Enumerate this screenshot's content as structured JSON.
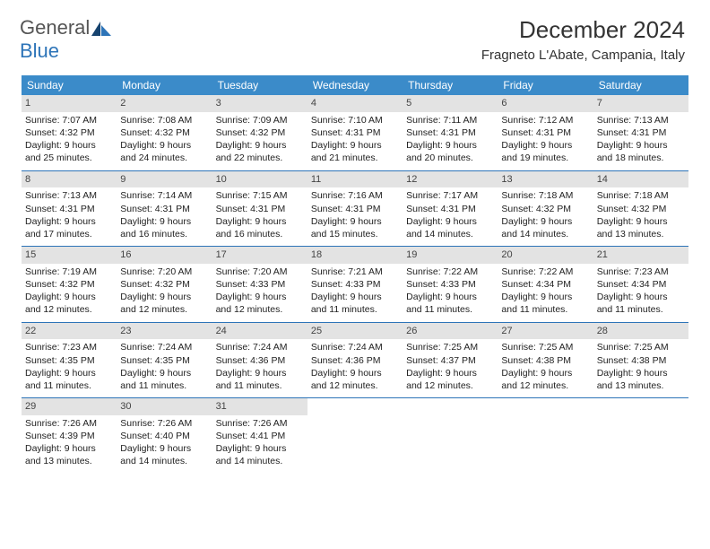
{
  "logo": {
    "general": "General",
    "blue": "Blue"
  },
  "title": "December 2024",
  "location": "Fragneto L'Abate, Campania, Italy",
  "colors": {
    "header_bg": "#3b8bc9",
    "header_text": "#ffffff",
    "daynum_bg": "#e3e3e3",
    "week_border": "#2d74b8"
  },
  "day_headers": [
    "Sunday",
    "Monday",
    "Tuesday",
    "Wednesday",
    "Thursday",
    "Friday",
    "Saturday"
  ],
  "days": [
    {
      "n": "1",
      "sr": "7:07 AM",
      "ss": "4:32 PM",
      "dl": "9 hours and 25 minutes."
    },
    {
      "n": "2",
      "sr": "7:08 AM",
      "ss": "4:32 PM",
      "dl": "9 hours and 24 minutes."
    },
    {
      "n": "3",
      "sr": "7:09 AM",
      "ss": "4:32 PM",
      "dl": "9 hours and 22 minutes."
    },
    {
      "n": "4",
      "sr": "7:10 AM",
      "ss": "4:31 PM",
      "dl": "9 hours and 21 minutes."
    },
    {
      "n": "5",
      "sr": "7:11 AM",
      "ss": "4:31 PM",
      "dl": "9 hours and 20 minutes."
    },
    {
      "n": "6",
      "sr": "7:12 AM",
      "ss": "4:31 PM",
      "dl": "9 hours and 19 minutes."
    },
    {
      "n": "7",
      "sr": "7:13 AM",
      "ss": "4:31 PM",
      "dl": "9 hours and 18 minutes."
    },
    {
      "n": "8",
      "sr": "7:13 AM",
      "ss": "4:31 PM",
      "dl": "9 hours and 17 minutes."
    },
    {
      "n": "9",
      "sr": "7:14 AM",
      "ss": "4:31 PM",
      "dl": "9 hours and 16 minutes."
    },
    {
      "n": "10",
      "sr": "7:15 AM",
      "ss": "4:31 PM",
      "dl": "9 hours and 16 minutes."
    },
    {
      "n": "11",
      "sr": "7:16 AM",
      "ss": "4:31 PM",
      "dl": "9 hours and 15 minutes."
    },
    {
      "n": "12",
      "sr": "7:17 AM",
      "ss": "4:31 PM",
      "dl": "9 hours and 14 minutes."
    },
    {
      "n": "13",
      "sr": "7:18 AM",
      "ss": "4:32 PM",
      "dl": "9 hours and 14 minutes."
    },
    {
      "n": "14",
      "sr": "7:18 AM",
      "ss": "4:32 PM",
      "dl": "9 hours and 13 minutes."
    },
    {
      "n": "15",
      "sr": "7:19 AM",
      "ss": "4:32 PM",
      "dl": "9 hours and 12 minutes."
    },
    {
      "n": "16",
      "sr": "7:20 AM",
      "ss": "4:32 PM",
      "dl": "9 hours and 12 minutes."
    },
    {
      "n": "17",
      "sr": "7:20 AM",
      "ss": "4:33 PM",
      "dl": "9 hours and 12 minutes."
    },
    {
      "n": "18",
      "sr": "7:21 AM",
      "ss": "4:33 PM",
      "dl": "9 hours and 11 minutes."
    },
    {
      "n": "19",
      "sr": "7:22 AM",
      "ss": "4:33 PM",
      "dl": "9 hours and 11 minutes."
    },
    {
      "n": "20",
      "sr": "7:22 AM",
      "ss": "4:34 PM",
      "dl": "9 hours and 11 minutes."
    },
    {
      "n": "21",
      "sr": "7:23 AM",
      "ss": "4:34 PM",
      "dl": "9 hours and 11 minutes."
    },
    {
      "n": "22",
      "sr": "7:23 AM",
      "ss": "4:35 PM",
      "dl": "9 hours and 11 minutes."
    },
    {
      "n": "23",
      "sr": "7:24 AM",
      "ss": "4:35 PM",
      "dl": "9 hours and 11 minutes."
    },
    {
      "n": "24",
      "sr": "7:24 AM",
      "ss": "4:36 PM",
      "dl": "9 hours and 11 minutes."
    },
    {
      "n": "25",
      "sr": "7:24 AM",
      "ss": "4:36 PM",
      "dl": "9 hours and 12 minutes."
    },
    {
      "n": "26",
      "sr": "7:25 AM",
      "ss": "4:37 PM",
      "dl": "9 hours and 12 minutes."
    },
    {
      "n": "27",
      "sr": "7:25 AM",
      "ss": "4:38 PM",
      "dl": "9 hours and 12 minutes."
    },
    {
      "n": "28",
      "sr": "7:25 AM",
      "ss": "4:38 PM",
      "dl": "9 hours and 13 minutes."
    },
    {
      "n": "29",
      "sr": "7:26 AM",
      "ss": "4:39 PM",
      "dl": "9 hours and 13 minutes."
    },
    {
      "n": "30",
      "sr": "7:26 AM",
      "ss": "4:40 PM",
      "dl": "9 hours and 14 minutes."
    },
    {
      "n": "31",
      "sr": "7:26 AM",
      "ss": "4:41 PM",
      "dl": "9 hours and 14 minutes."
    }
  ],
  "labels": {
    "sunrise": "Sunrise:",
    "sunset": "Sunset:",
    "daylight": "Daylight:"
  }
}
